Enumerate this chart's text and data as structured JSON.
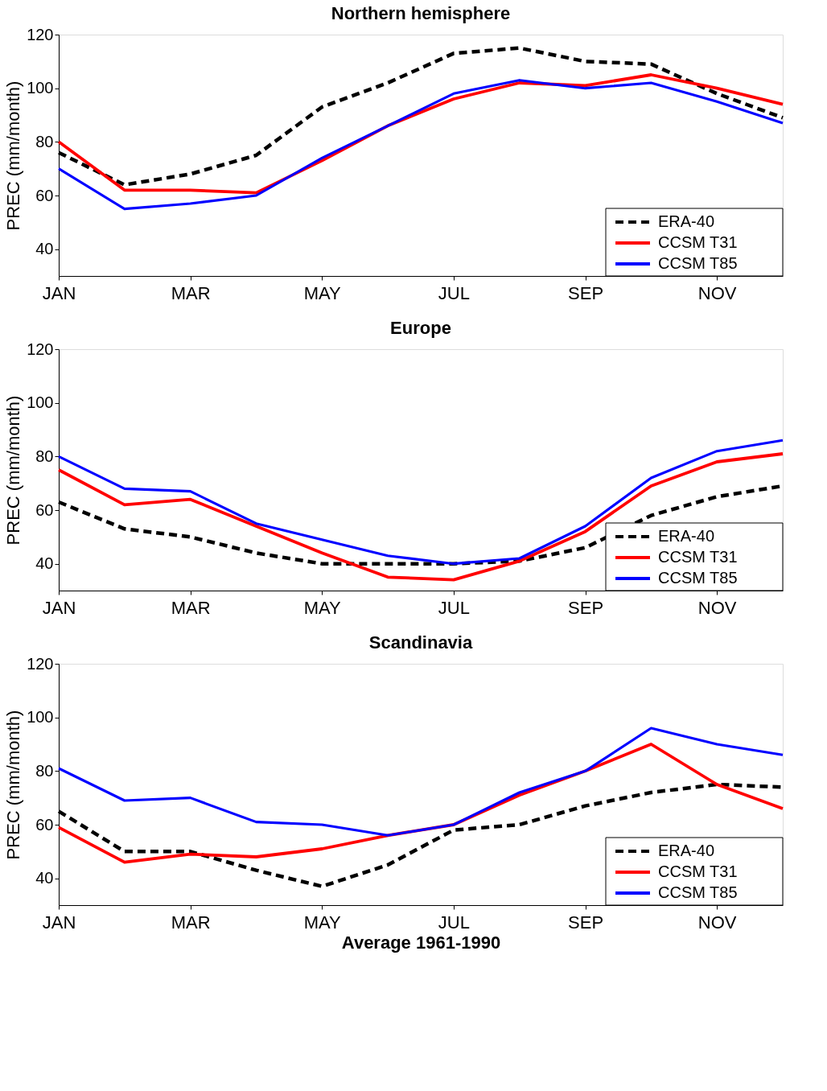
{
  "chart_data": [
    {
      "type": "line",
      "title": "Northern hemisphere",
      "ylabel": "PREC (mm/month)",
      "categories": [
        "JAN",
        null,
        "MAR",
        null,
        "MAY",
        null,
        "JUL",
        null,
        "SEP",
        null,
        "NOV",
        null
      ],
      "ylim": [
        30,
        120
      ],
      "yticks": [
        40,
        60,
        80,
        100,
        120
      ],
      "grid": false,
      "legend": "bottom right",
      "series": [
        {
          "name": "ERA-40",
          "color": "#000000",
          "line_style": "dashed",
          "values": [
            76,
            64,
            68,
            75,
            93,
            102,
            113,
            115,
            110,
            109,
            98,
            89
          ]
        },
        {
          "name": "CCSM T31",
          "color": "#ff0000",
          "line_style": "solid",
          "values": [
            80,
            62,
            62,
            61,
            73,
            86,
            96,
            102,
            101,
            105,
            100,
            94
          ]
        },
        {
          "name": "CCSM T85",
          "color": "#0000ff",
          "line_style": "solid",
          "values": [
            70,
            55,
            57,
            60,
            74,
            86,
            98,
            103,
            100,
            102,
            95,
            87
          ]
        }
      ]
    },
    {
      "type": "line",
      "title": "Europe",
      "ylabel": "PREC (mm/month)",
      "categories": [
        "JAN",
        null,
        "MAR",
        null,
        "MAY",
        null,
        "JUL",
        null,
        "SEP",
        null,
        "NOV",
        null
      ],
      "ylim": [
        30,
        120
      ],
      "yticks": [
        40,
        60,
        80,
        100,
        120
      ],
      "grid": false,
      "legend": "bottom right",
      "series": [
        {
          "name": "ERA-40",
          "color": "#000000",
          "line_style": "dashed",
          "values": [
            63,
            53,
            50,
            44,
            40,
            40,
            40,
            41,
            46,
            58,
            65,
            69
          ]
        },
        {
          "name": "CCSM T31",
          "color": "#ff0000",
          "line_style": "solid",
          "values": [
            75,
            62,
            64,
            54,
            44,
            35,
            34,
            41,
            52,
            69,
            78,
            81
          ]
        },
        {
          "name": "CCSM T85",
          "color": "#0000ff",
          "line_style": "solid",
          "values": [
            80,
            68,
            67,
            55,
            49,
            43,
            40,
            42,
            54,
            72,
            82,
            86
          ]
        }
      ]
    },
    {
      "type": "line",
      "title": "Scandinavia",
      "ylabel": "PREC (mm/month)",
      "xlabel": "Average 1961-1990",
      "categories": [
        "JAN",
        null,
        "MAR",
        null,
        "MAY",
        null,
        "JUL",
        null,
        "SEP",
        null,
        "NOV",
        null
      ],
      "ylim": [
        30,
        120
      ],
      "yticks": [
        40,
        60,
        80,
        100,
        120
      ],
      "grid": false,
      "legend": "bottom right",
      "series": [
        {
          "name": "ERA-40",
          "color": "#000000",
          "line_style": "dashed",
          "values": [
            65,
            50,
            50,
            43,
            37,
            45,
            58,
            60,
            67,
            72,
            75,
            74
          ]
        },
        {
          "name": "CCSM T31",
          "color": "#ff0000",
          "line_style": "solid",
          "values": [
            59,
            46,
            49,
            48,
            51,
            56,
            60,
            71,
            80,
            90,
            75,
            66
          ]
        },
        {
          "name": "CCSM T85",
          "color": "#0000ff",
          "line_style": "solid",
          "values": [
            81,
            69,
            70,
            61,
            60,
            56,
            60,
            72,
            80,
            96,
            90,
            86
          ]
        }
      ]
    }
  ]
}
